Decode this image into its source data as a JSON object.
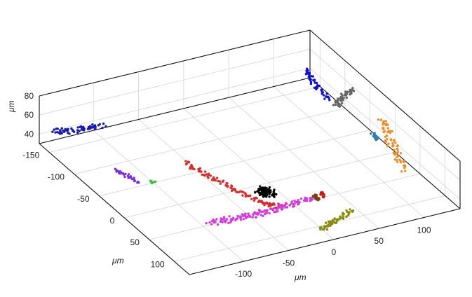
{
  "chart_data": {
    "type": "scatter3d",
    "title": "",
    "axes": {
      "x": {
        "label": "μm",
        "ticks": [
          "-150",
          "-100",
          "-50",
          "0",
          "50",
          "100"
        ],
        "range": [
          -170,
          130
        ]
      },
      "y": {
        "label": "μm",
        "ticks": [
          "-100",
          "-50",
          "0",
          "50",
          "100"
        ],
        "range": [
          -160,
          140
        ]
      },
      "z": {
        "label": "μm",
        "ticks": [
          "40",
          "60",
          "80"
        ],
        "range": [
          30,
          80
        ]
      }
    },
    "grid": true,
    "legend": "none",
    "series": [
      {
        "color": "#1a1aa8",
        "path": [
          [
            -160,
            -150,
            45
          ],
          [
            -150,
            -130,
            47
          ],
          [
            -140,
            -105,
            49
          ]
        ],
        "count": 60,
        "jitter": 4
      },
      {
        "color": "#1010c8",
        "path": [
          [
            -105,
            100,
            78
          ],
          [
            -90,
            100,
            70
          ],
          [
            -70,
            105,
            62
          ]
        ],
        "count": 45,
        "jitter": 3
      },
      {
        "color": "#666666",
        "path": [
          [
            -80,
            120,
            45
          ],
          [
            -70,
            120,
            60
          ],
          [
            -55,
            125,
            74
          ]
        ],
        "count": 50,
        "jitter": 3
      },
      {
        "color": "#d03030",
        "path": [
          [
            -60,
            -60,
            38
          ],
          [
            -10,
            -50,
            38
          ],
          [
            40,
            -35,
            38
          ],
          [
            65,
            -20,
            38
          ]
        ],
        "count": 120,
        "jitter": 3
      },
      {
        "color": "#44c044",
        "path": [
          [
            -45,
            -105,
            35
          ],
          [
            -42,
            -104,
            35
          ]
        ],
        "count": 10,
        "jitter": 2
      },
      {
        "color": "#7a30d0",
        "path": [
          [
            -80,
            -125,
            35
          ],
          [
            -65,
            -120,
            35
          ],
          [
            -50,
            -118,
            35
          ]
        ],
        "count": 30,
        "jitter": 2
      },
      {
        "color": "#d040d8",
        "path": [
          [
            55,
            -95,
            35
          ],
          [
            60,
            -40,
            35
          ],
          [
            55,
            20,
            35
          ]
        ],
        "count": 150,
        "jitter": 4
      },
      {
        "color": "#000000",
        "path": [
          [
            20,
            -20,
            35
          ],
          [
            28,
            -14,
            35
          ]
        ],
        "count": 90,
        "jitter": 6
      },
      {
        "color": "#7a4010",
        "path": [
          [
            50,
            22,
            35
          ],
          [
            60,
            22,
            35
          ]
        ],
        "count": 25,
        "jitter": 2
      },
      {
        "color": "#c02020",
        "path": [
          [
            50,
            30,
            35
          ],
          [
            58,
            30,
            35
          ]
        ],
        "count": 12,
        "jitter": 2
      },
      {
        "color": "#8a8a10",
        "path": [
          [
            115,
            -5,
            35
          ],
          [
            105,
            15,
            35
          ],
          [
            95,
            40,
            35
          ]
        ],
        "count": 60,
        "jitter": 3
      },
      {
        "color": "#3080b0",
        "path": [
          [
            -5,
            118,
            52
          ],
          [
            0,
            118,
            52
          ],
          [
            5,
            118,
            51
          ]
        ],
        "count": 25,
        "jitter": 2
      },
      {
        "color": "#e89030",
        "path": [
          [
            45,
            125,
            36
          ],
          [
            20,
            125,
            52
          ],
          [
            0,
            126,
            68
          ]
        ],
        "count": 70,
        "jitter": 4
      }
    ]
  }
}
